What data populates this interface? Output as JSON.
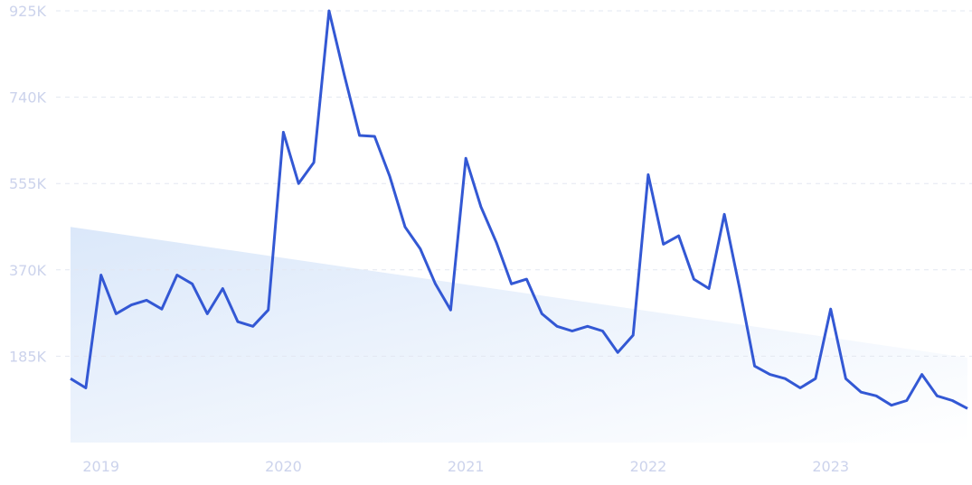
{
  "chart_data": {
    "type": "line",
    "color": "#3358d4",
    "grid": true,
    "x": [
      2018.833,
      2018.917,
      2019,
      2019.083,
      2019.167,
      2019.25,
      2019.333,
      2019.417,
      2019.5,
      2019.583,
      2019.667,
      2019.75,
      2019.833,
      2019.917,
      2020,
      2020.083,
      2020.167,
      2020.25,
      2020.333,
      2020.417,
      2020.5,
      2020.583,
      2020.667,
      2020.75,
      2020.833,
      2020.917,
      2021,
      2021.083,
      2021.167,
      2021.25,
      2021.333,
      2021.417,
      2021.5,
      2021.583,
      2021.667,
      2021.75,
      2021.833,
      2021.917,
      2022,
      2022.083,
      2022.167,
      2022.25,
      2022.333,
      2022.417,
      2022.5,
      2022.583,
      2022.667,
      2022.75,
      2022.833,
      2022.917,
      2023,
      2023.083,
      2023.167,
      2023.25,
      2023.333,
      2023.417,
      2023.5,
      2023.583,
      2023.667,
      2023.75
    ],
    "values": [
      137000,
      117000,
      359000,
      276000,
      295000,
      305000,
      286000,
      359000,
      340000,
      276000,
      330000,
      259000,
      249000,
      284000,
      665000,
      555000,
      600000,
      925000,
      789000,
      658000,
      656000,
      570000,
      462000,
      415000,
      340000,
      284000,
      609000,
      505000,
      429000,
      340000,
      350000,
      276000,
      249000,
      239000,
      249000,
      239000,
      193000,
      230000,
      574000,
      425000,
      443000,
      350000,
      330000,
      489000,
      332000,
      164000,
      146000,
      137000,
      117000,
      137000,
      286000,
      137000,
      108000,
      100000,
      80000,
      90000,
      146000,
      100000,
      90000,
      73000
    ],
    "trend_x": [
      2018.833,
      2023.75
    ],
    "trend_values": [
      462000,
      182000
    ],
    "xlim": [
      2018.833,
      2023.75
    ],
    "xticks": [
      2019,
      2020,
      2021,
      2022,
      2023
    ],
    "ylim": [
      0,
      925000
    ],
    "yticks": [
      {
        "value": 185000,
        "label": "185K"
      },
      {
        "value": 370000,
        "label": "370K"
      },
      {
        "value": 555000,
        "label": "555K"
      },
      {
        "value": 740000,
        "label": "740K"
      },
      {
        "value": 925000,
        "label": "925K"
      }
    ]
  }
}
